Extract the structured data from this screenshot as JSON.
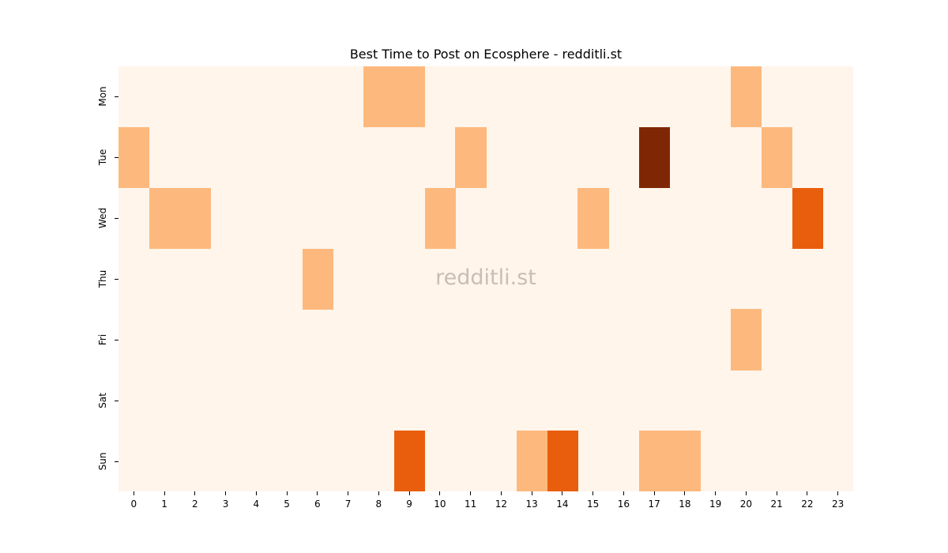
{
  "chart_data": {
    "type": "heatmap",
    "title": "Best Time to Post on Ecosphere - redditli.st",
    "xlabel": "",
    "ylabel": "",
    "x": [
      "0",
      "1",
      "2",
      "3",
      "4",
      "5",
      "6",
      "7",
      "8",
      "9",
      "10",
      "11",
      "12",
      "13",
      "14",
      "15",
      "16",
      "17",
      "18",
      "19",
      "20",
      "21",
      "22",
      "23"
    ],
    "y": [
      "Mon",
      "Tue",
      "Wed",
      "Thu",
      "Fri",
      "Sat",
      "Sun"
    ],
    "values": [
      [
        0,
        0,
        0,
        0,
        0,
        0,
        0,
        0,
        1,
        1,
        0,
        0,
        0,
        0,
        0,
        0,
        0,
        0,
        0,
        0,
        1,
        0,
        0,
        0
      ],
      [
        1,
        0,
        0,
        0,
        0,
        0,
        0,
        0,
        0,
        0,
        0,
        1,
        0,
        0,
        0,
        0,
        0,
        3,
        0,
        0,
        0,
        1,
        0,
        0
      ],
      [
        0,
        1,
        1,
        0,
        0,
        0,
        0,
        0,
        0,
        0,
        1,
        0,
        0,
        0,
        0,
        1,
        0,
        0,
        0,
        0,
        0,
        0,
        2,
        0
      ],
      [
        0,
        0,
        0,
        0,
        0,
        0,
        1,
        0,
        0,
        0,
        0,
        0,
        0,
        0,
        0,
        0,
        0,
        0,
        0,
        0,
        0,
        0,
        0,
        0
      ],
      [
        0,
        0,
        0,
        0,
        0,
        0,
        0,
        0,
        0,
        0,
        0,
        0,
        0,
        0,
        0,
        0,
        0,
        0,
        0,
        0,
        1,
        0,
        0,
        0
      ],
      [
        0,
        0,
        0,
        0,
        0,
        0,
        0,
        0,
        0,
        0,
        0,
        0,
        0,
        0,
        0,
        0,
        0,
        0,
        0,
        0,
        0,
        0,
        0,
        0
      ],
      [
        0,
        0,
        0,
        0,
        0,
        0,
        0,
        0,
        0,
        2,
        0,
        0,
        0,
        1,
        2,
        0,
        0,
        1,
        1,
        0,
        0,
        0,
        0,
        0
      ]
    ],
    "colormap": "Oranges",
    "color_levels": {
      "0": "#fff5eb",
      "1": "#fdb97d",
      "2": "#e95e0d",
      "3": "#7f2704"
    },
    "colorbar": false,
    "grid": false
  },
  "watermark": "redditli.st"
}
